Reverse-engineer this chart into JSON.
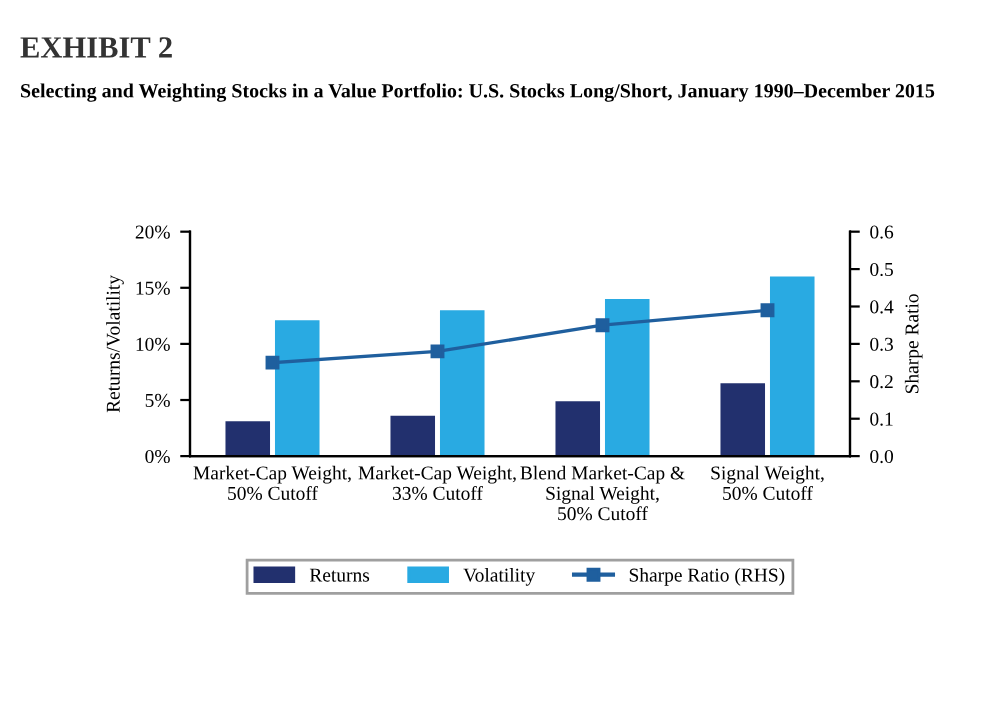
{
  "chart_data": {
    "type": "bar",
    "title": "EXHIBIT 2",
    "subtitle": "Selecting and Weighting Stocks in a Value Portfolio: U.S. Stocks Long/Short, January 1990–December 2015",
    "categories": [
      "Market-Cap Weight,\n50% Cutoff",
      "Market-Cap Weight,\n33% Cutoff",
      "Blend Market-Cap &\nSignal Weight,\n50% Cutoff",
      "Signal Weight,\n50% Cutoff"
    ],
    "series": [
      {
        "name": "Returns",
        "color": "#22306e",
        "values": [
          3.1,
          3.6,
          4.9,
          6.5
        ]
      },
      {
        "name": "Volatility",
        "color": "#29aae2",
        "values": [
          12.1,
          13.0,
          14.0,
          16.0
        ]
      },
      {
        "name": "Sharpe Ratio (RHS)",
        "type": "line",
        "axis": "y2",
        "color": "#1f5f9e",
        "marker": "square",
        "values": [
          0.25,
          0.28,
          0.35,
          0.39
        ]
      }
    ],
    "ylabel": "Returns/Volatility",
    "y2label": "Sharpe Ratio",
    "ylim": [
      0,
      20
    ],
    "yticks": [
      {
        "value": 0,
        "label": "0%"
      },
      {
        "value": 5,
        "label": "5%"
      },
      {
        "value": 10,
        "label": "10%"
      },
      {
        "value": 15,
        "label": "15%"
      },
      {
        "value": 20,
        "label": "20%"
      }
    ],
    "y2lim": [
      0,
      0.6
    ],
    "y2ticks": [
      {
        "value": 0,
        "label": "0.0"
      },
      {
        "value": 0.1,
        "label": "0.1"
      },
      {
        "value": 0.2,
        "label": "0.2"
      },
      {
        "value": 0.3,
        "label": "0.3"
      },
      {
        "value": 0.4,
        "label": "0.4"
      },
      {
        "value": 0.5,
        "label": "0.5"
      },
      {
        "value": 0.6,
        "label": "0.6"
      }
    ],
    "legend": "bottom",
    "grid": false
  }
}
